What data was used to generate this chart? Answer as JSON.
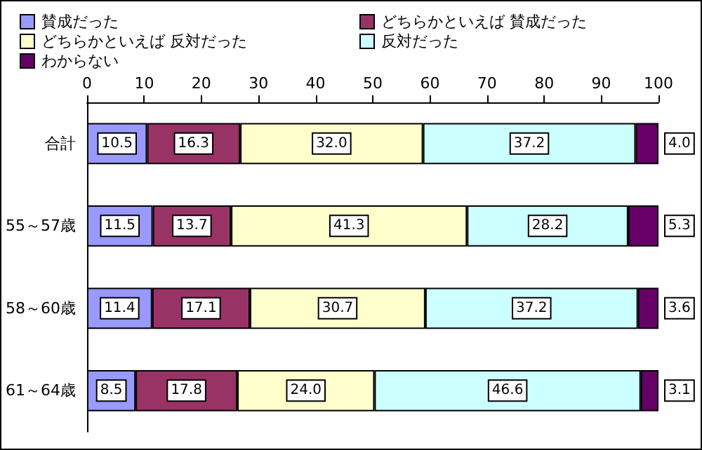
{
  "chart_data": {
    "type": "bar",
    "orientation": "horizontal",
    "stacked": true,
    "legend": "top",
    "grid": false,
    "categories": [
      "合計",
      "55～57歳",
      "58～60歳",
      "61～64歳"
    ],
    "xlim": [
      0,
      100
    ],
    "xticks": [
      0,
      10,
      20,
      30,
      40,
      50,
      60,
      70,
      80,
      90,
      100
    ],
    "series": [
      {
        "name": "賛成だった",
        "color": "#9999ff",
        "values": [
          10.5,
          11.5,
          11.4,
          8.5
        ],
        "value_labels": [
          "10.5",
          "11.5",
          "11.4",
          "8.5"
        ]
      },
      {
        "name": "どちらかといえば 賛成だった",
        "color": "#993366",
        "values": [
          16.3,
          13.7,
          17.1,
          17.8
        ],
        "value_labels": [
          "16.3",
          "13.7",
          "17.1",
          "17.8"
        ]
      },
      {
        "name": "どちらかといえば 反対だった",
        "color": "#ffffcc",
        "values": [
          32.0,
          41.3,
          30.7,
          24.0
        ],
        "value_labels": [
          "32.0",
          "41.3",
          "30.7",
          "24.0"
        ]
      },
      {
        "name": "反対だった",
        "color": "#ccffff",
        "values": [
          37.2,
          28.2,
          37.2,
          46.6
        ],
        "value_labels": [
          "37.2",
          "28.2",
          "37.2",
          "46.6"
        ]
      },
      {
        "name": "わからない",
        "color": "#660066",
        "values": [
          4.0,
          5.3,
          3.6,
          3.1
        ],
        "value_labels": [
          "4.0",
          "5.3",
          "3.6",
          "3.1"
        ]
      }
    ]
  }
}
